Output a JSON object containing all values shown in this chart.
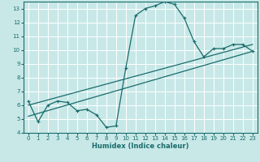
{
  "xlabel": "Humidex (Indice chaleur)",
  "xlim": [
    -0.5,
    23.5
  ],
  "ylim": [
    4,
    13.5
  ],
  "xticks": [
    0,
    1,
    2,
    3,
    4,
    5,
    6,
    7,
    8,
    9,
    10,
    11,
    12,
    13,
    14,
    15,
    16,
    17,
    18,
    19,
    20,
    21,
    22,
    23
  ],
  "yticks": [
    4,
    5,
    6,
    7,
    8,
    9,
    10,
    11,
    12,
    13
  ],
  "bg_color": "#c8e8e8",
  "line_color": "#1a6b6b",
  "grid_color": "#ffffff",
  "line1_x": [
    0,
    1,
    2,
    3,
    4,
    5,
    6,
    7,
    8,
    9,
    10,
    11,
    12,
    13,
    14,
    15,
    16,
    17,
    18,
    19,
    20,
    21,
    22,
    23
  ],
  "line1_y": [
    6.3,
    4.8,
    6.0,
    6.3,
    6.2,
    5.6,
    5.7,
    5.3,
    4.4,
    4.5,
    8.7,
    12.5,
    13.0,
    13.2,
    13.5,
    13.3,
    12.3,
    10.6,
    9.5,
    10.1,
    10.1,
    10.4,
    10.4,
    9.9
  ],
  "line2_x": [
    0,
    23
  ],
  "line2_y": [
    6.0,
    10.4
  ],
  "line3_x": [
    0,
    23
  ],
  "line3_y": [
    5.2,
    9.9
  ]
}
